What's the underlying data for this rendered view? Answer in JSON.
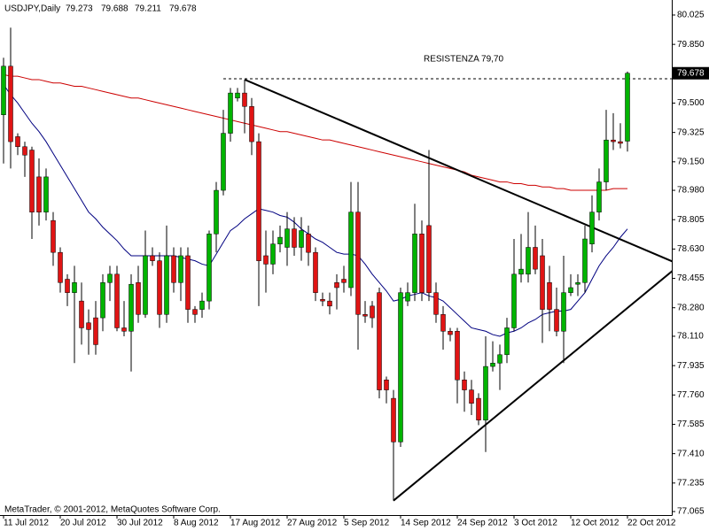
{
  "chart_data": {
    "type": "candlestick",
    "symbol": "USDJPY,Daily",
    "categories": [
      "11 Jul 2012",
      null,
      null,
      null,
      null,
      null,
      null,
      null,
      "20 Jul 2012",
      null,
      null,
      null,
      null,
      null,
      null,
      null,
      "30 Jul 2012",
      null,
      null,
      null,
      null,
      null,
      null,
      null,
      "8 Aug 2012",
      null,
      null,
      null,
      null,
      null,
      null,
      null,
      "17 Aug 2012",
      null,
      null,
      null,
      null,
      null,
      null,
      null,
      "27 Aug 2012",
      null,
      null,
      null,
      null,
      null,
      null,
      null,
      "5 Sep 2012",
      null,
      null,
      null,
      null,
      null,
      null,
      null,
      "14 Sep 2012",
      null,
      null,
      null,
      null,
      null,
      null,
      null,
      "24 Sep 2012",
      null,
      null,
      null,
      null,
      null,
      null,
      null,
      "3 Oct 2012",
      null,
      null,
      null,
      null,
      null,
      null,
      null,
      "12 Oct 2012",
      null,
      null,
      null,
      null,
      null,
      null,
      null,
      "22 Oct 2012"
    ],
    "open": [
      79.43,
      79.72,
      79.3,
      79.24,
      79.22,
      79.06,
      78.85,
      78.8,
      78.61,
      78.45,
      78.37,
      78.32,
      78.19,
      78.22,
      78.22,
      78.43,
      78.48,
      78.16,
      78.14,
      78.43,
      78.24,
      78.59,
      78.56,
      78.24,
      78.59,
      78.43,
      78.59,
      78.27,
      78.27,
      78.32,
      78.72,
      78.98,
      79.32,
      79.53,
      79.56,
      79.48,
      79.27,
      78.59,
      78.54,
      78.66,
      78.64,
      78.75,
      78.64,
      78.72,
      78.61,
      78.33,
      78.32,
      78.43,
      78.45,
      78.4,
      78.85,
      78.24,
      78.29,
      78.37,
      77.85,
      77.74,
      77.48,
      78.32,
      78.37,
      78.72,
      78.77,
      78.37,
      78.24,
      78.14,
      78.14,
      77.85,
      77.79,
      77.74,
      77.61,
      77.93,
      77.95,
      78.0,
      78.16,
      78.48,
      78.48,
      78.64,
      78.59,
      78.43,
      78.27,
      78.14,
      78.37,
      78.42,
      78.43,
      78.66,
      78.85,
      79.03,
      79.28,
      79.27,
      79.273
    ],
    "high": [
      79.77,
      79.95,
      79.32,
      79.27,
      79.24,
      79.17,
      79.11,
      78.85,
      78.64,
      78.48,
      78.53,
      78.43,
      78.27,
      78.32,
      78.48,
      78.53,
      78.53,
      78.32,
      78.48,
      78.53,
      78.74,
      78.64,
      78.61,
      78.77,
      78.64,
      78.64,
      78.64,
      78.29,
      78.37,
      78.74,
      79.03,
      79.46,
      79.59,
      79.59,
      79.64,
      79.53,
      79.32,
      78.74,
      78.74,
      78.77,
      78.85,
      78.82,
      78.82,
      78.77,
      78.64,
      78.37,
      78.37,
      78.48,
      78.53,
      79.03,
      79.03,
      78.32,
      78.32,
      78.4,
      77.87,
      77.79,
      78.4,
      78.43,
      78.9,
      78.8,
      79.22,
      78.43,
      78.29,
      78.16,
      78.16,
      77.9,
      77.85,
      77.77,
      78.11,
      78.08,
      78.06,
      78.22,
      78.69,
      78.72,
      78.85,
      78.77,
      78.69,
      78.53,
      78.4,
      78.59,
      78.48,
      78.48,
      78.77,
      78.95,
      79.11,
      79.46,
      79.44,
      79.38,
      79.688
    ],
    "low": [
      79.14,
      79.11,
      79.19,
      79.06,
      78.69,
      78.77,
      78.8,
      78.53,
      78.37,
      78.29,
      77.95,
      78.06,
      78.0,
      78.0,
      78.14,
      78.32,
      78.14,
      78.11,
      77.9,
      78.19,
      78.22,
      78.53,
      78.16,
      78.19,
      78.37,
      78.32,
      78.19,
      78.19,
      78.22,
      78.27,
      78.61,
      78.95,
      79.27,
      79.51,
      79.32,
      79.19,
      78.29,
      78.37,
      78.48,
      78.61,
      78.53,
      78.59,
      78.56,
      78.53,
      78.32,
      78.29,
      78.24,
      78.27,
      78.37,
      78.35,
      78.03,
      78.19,
      78.16,
      77.74,
      77.71,
      77.13,
      77.45,
      78.29,
      78.32,
      78.32,
      78.32,
      78.19,
      78.03,
      78.08,
      77.71,
      77.66,
      77.64,
      77.58,
      77.42,
      77.9,
      77.79,
      77.95,
      78.14,
      78.43,
      78.43,
      78.48,
      78.07,
      78.14,
      78.11,
      77.95,
      78.35,
      78.35,
      78.37,
      78.61,
      78.8,
      78.98,
      79.22,
      79.23,
      79.211
    ],
    "close": [
      79.72,
      79.27,
      79.24,
      79.19,
      78.85,
      78.85,
      79.06,
      78.61,
      78.43,
      78.37,
      78.43,
      78.16,
      78.15,
      78.06,
      78.43,
      78.48,
      78.16,
      78.14,
      78.42,
      78.24,
      78.59,
      78.56,
      78.24,
      78.59,
      78.43,
      78.59,
      78.27,
      78.24,
      78.32,
      78.72,
      78.98,
      79.32,
      79.56,
      79.56,
      79.48,
      79.27,
      78.56,
      78.54,
      78.66,
      78.7,
      78.75,
      78.64,
      78.74,
      78.61,
      78.37,
      78.32,
      78.29,
      78.4,
      78.43,
      78.85,
      78.24,
      78.23,
      78.22,
      77.79,
      77.79,
      77.48,
      78.37,
      78.37,
      78.72,
      78.37,
      78.37,
      78.24,
      78.14,
      78.12,
      77.85,
      77.79,
      77.71,
      77.61,
      77.93,
      77.95,
      78.0,
      78.16,
      78.48,
      78.51,
      78.64,
      78.51,
      78.27,
      78.27,
      78.14,
      78.37,
      78.4,
      78.43,
      78.69,
      78.85,
      79.03,
      79.28,
      79.27,
      79.26,
      79.678
    ],
    "up_color": "#00b400",
    "down_color": "#e01414",
    "wick_color": "#000000",
    "moving_averages": [
      {
        "color": "#cc0000",
        "values": [
          79.67,
          79.66,
          79.66,
          79.65,
          79.64,
          79.64,
          79.63,
          79.62,
          79.62,
          79.61,
          79.6,
          79.6,
          79.59,
          79.58,
          79.57,
          79.56,
          79.55,
          79.54,
          79.53,
          79.53,
          79.52,
          79.51,
          79.5,
          79.49,
          79.48,
          79.47,
          79.46,
          79.45,
          79.44,
          79.43,
          79.42,
          79.41,
          79.4,
          79.39,
          79.38,
          79.37,
          79.36,
          79.35,
          79.34,
          79.33,
          79.33,
          79.32,
          79.31,
          79.3,
          79.29,
          79.28,
          79.28,
          79.27,
          79.26,
          79.25,
          79.24,
          79.23,
          79.22,
          79.21,
          79.2,
          79.19,
          79.18,
          79.17,
          79.16,
          79.15,
          79.14,
          79.13,
          79.12,
          79.11,
          79.1,
          79.09,
          79.07,
          79.06,
          79.05,
          79.04,
          79.03,
          79.03,
          79.02,
          79.02,
          79.01,
          79.01,
          79.0,
          79.0,
          78.99,
          78.99,
          78.98,
          78.98,
          78.98,
          78.98,
          78.98,
          78.98,
          78.99,
          78.99,
          78.99
        ]
      },
      {
        "color": "#000080",
        "values": [
          79.61,
          79.55,
          79.5,
          79.44,
          79.38,
          79.33,
          79.27,
          79.2,
          79.13,
          79.06,
          78.99,
          78.92,
          78.85,
          78.81,
          78.76,
          78.72,
          78.68,
          78.63,
          78.59,
          78.59,
          78.59,
          78.59,
          78.59,
          78.59,
          78.59,
          78.58,
          78.57,
          78.56,
          78.54,
          78.53,
          78.6,
          78.67,
          78.74,
          78.77,
          78.81,
          78.84,
          78.87,
          78.86,
          78.85,
          78.83,
          78.82,
          78.79,
          78.75,
          78.72,
          78.69,
          78.67,
          78.64,
          78.61,
          78.6,
          78.6,
          78.59,
          78.54,
          78.48,
          78.43,
          78.38,
          78.32,
          78.33,
          78.35,
          78.36,
          78.37,
          78.35,
          78.34,
          78.32,
          78.28,
          78.24,
          78.2,
          78.16,
          78.15,
          78.14,
          78.12,
          78.11,
          78.13,
          78.14,
          78.16,
          78.19,
          78.21,
          78.24,
          78.25,
          78.26,
          78.26,
          78.27,
          78.32,
          78.37,
          78.45,
          78.53,
          78.59,
          78.64,
          78.7,
          78.75
        ]
      }
    ],
    "trendlines": [
      {
        "x": [
          34,
          94.5
        ],
        "y": [
          79.64,
          78.553
        ],
        "color": "#000000"
      },
      {
        "x": [
          55,
          94.5
        ],
        "y": [
          77.13,
          78.505
        ],
        "color": "#000000"
      }
    ],
    "hline": {
      "x": 31,
      "y": 79.645,
      "color": "#000000"
    },
    "annotation": "RESISTENZA 79,70",
    "ylim": [
      77.044,
      80.104
    ],
    "yticks": [
      80.025,
      {
        "value": 79.85,
        "label": "79.850"
      },
      {
        "value": 79.5,
        "label": "79.500"
      },
      79.325,
      {
        "value": 79.15,
        "label": "79.150"
      },
      {
        "value": 78.98,
        "label": "78.980"
      },
      78.805,
      {
        "value": 78.63,
        "label": "78.630"
      },
      78.455,
      {
        "value": 78.28,
        "label": "78.280"
      },
      {
        "value": 78.11,
        "label": "78.110"
      },
      77.935,
      {
        "value": 77.76,
        "label": "77.760"
      },
      77.585,
      {
        "value": 77.41,
        "label": "77.410"
      },
      77.235,
      77.065
    ],
    "footer": "MetaTrader, © 2001-2012, MetaQuotes Software Corp."
  }
}
